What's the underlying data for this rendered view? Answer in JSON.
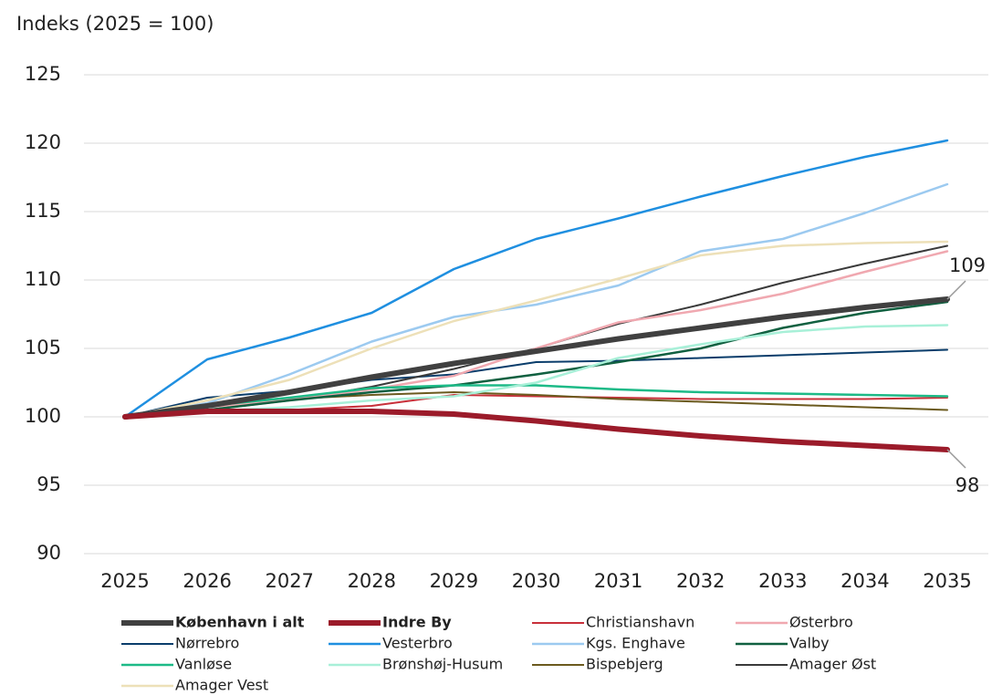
{
  "chart_data": {
    "type": "line",
    "y_axis_label": "Indeks (2025 = 100)",
    "x": [
      "2025",
      "2026",
      "2027",
      "2028",
      "2029",
      "2030",
      "2031",
      "2032",
      "2033",
      "2034",
      "2035"
    ],
    "ylim": [
      90,
      125
    ],
    "yticks": [
      90,
      95,
      100,
      105,
      110,
      115,
      120,
      125
    ],
    "grid": true,
    "series": [
      {
        "name": "København i alt",
        "color": "#404040",
        "line_width": 6,
        "bold": true,
        "values": [
          100,
          100.8,
          101.8,
          102.9,
          103.9,
          104.8,
          105.7,
          106.5,
          107.3,
          108.0,
          108.6
        ]
      },
      {
        "name": "Indre By",
        "color": "#9b1b2a",
        "line_width": 6,
        "bold": true,
        "values": [
          100,
          100.4,
          100.4,
          100.4,
          100.2,
          99.7,
          99.1,
          98.6,
          98.2,
          97.9,
          97.6
        ]
      },
      {
        "name": "Christianshavn",
        "color": "#c8303a",
        "line_width": 2,
        "values": [
          100,
          100.5,
          100.5,
          100.8,
          101.6,
          101.5,
          101.4,
          101.3,
          101.3,
          101.3,
          101.4
        ]
      },
      {
        "name": "Østerbro",
        "color": "#f0a8b0",
        "line_width": 2.5,
        "values": [
          100,
          100.7,
          101.3,
          102.0,
          103.0,
          105.0,
          106.9,
          107.8,
          109.0,
          110.6,
          112.1
        ]
      },
      {
        "name": "Nørrebro",
        "color": "#0a3d6b",
        "line_width": 2,
        "values": [
          100,
          101.4,
          101.9,
          102.7,
          103.1,
          104.0,
          104.1,
          104.3,
          104.5,
          104.7,
          104.9
        ]
      },
      {
        "name": "Vesterbro",
        "color": "#1f8fe0",
        "line_width": 2.5,
        "values": [
          100,
          104.2,
          105.8,
          107.6,
          110.8,
          113.0,
          114.5,
          116.1,
          117.6,
          119.0,
          120.2
        ]
      },
      {
        "name": "Kgs. Enghave",
        "color": "#9ccaf0",
        "line_width": 2.5,
        "values": [
          100,
          101.0,
          103.1,
          105.5,
          107.3,
          108.2,
          109.6,
          112.1,
          113.0,
          114.9,
          117.0
        ]
      },
      {
        "name": "Valby",
        "color": "#106040",
        "line_width": 2.5,
        "values": [
          100,
          100.5,
          101.2,
          101.8,
          102.3,
          103.1,
          104.0,
          105.0,
          106.5,
          107.6,
          108.4
        ]
      },
      {
        "name": "Vanløse",
        "color": "#1dba87",
        "line_width": 2.5,
        "values": [
          100,
          100.8,
          101.4,
          102.1,
          102.3,
          102.3,
          102.0,
          101.8,
          101.7,
          101.6,
          101.5
        ]
      },
      {
        "name": "Brønshøj-Husum",
        "color": "#a8f0d8",
        "line_width": 2.5,
        "values": [
          100,
          100.4,
          100.7,
          101.2,
          101.5,
          102.5,
          104.3,
          105.3,
          106.2,
          106.6,
          106.7
        ]
      },
      {
        "name": "Bispebjerg",
        "color": "#6b5a1e",
        "line_width": 2,
        "values": [
          100,
          100.8,
          101.3,
          101.6,
          101.8,
          101.6,
          101.3,
          101.1,
          100.9,
          100.7,
          100.5
        ]
      },
      {
        "name": "Amager Øst",
        "color": "#3a3a3a",
        "line_width": 2,
        "values": [
          100,
          100.5,
          101.2,
          102.2,
          103.5,
          105.0,
          106.8,
          108.2,
          109.8,
          111.2,
          112.5
        ]
      },
      {
        "name": "Amager Vest",
        "color": "#ede0b8",
        "line_width": 2.5,
        "values": [
          100,
          101.2,
          102.7,
          105.0,
          107.0,
          108.5,
          110.1,
          111.8,
          112.5,
          112.7,
          112.8
        ]
      }
    ],
    "annotations": [
      {
        "text": "109",
        "series": 0
      },
      {
        "text": "98",
        "series": 1
      }
    ]
  }
}
